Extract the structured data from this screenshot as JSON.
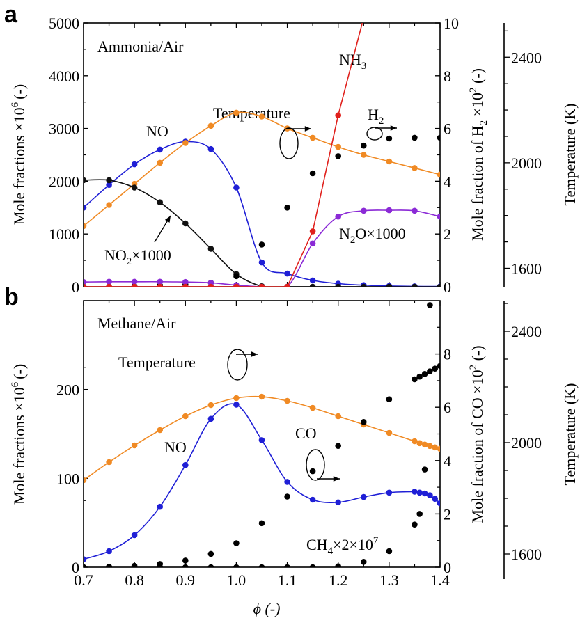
{
  "colors": {
    "no": "#1f1fd6",
    "temperature": "#f08a24",
    "species": "#18a818",
    "no2": "#111111",
    "n2o": "#8b2ad6",
    "nh3": "#e0201c"
  },
  "chart_data": [
    {
      "panel": "a",
      "type": "line",
      "annotations": {
        "label": "Ammonia/Air",
        "no": "NO",
        "temperature": "Temperature",
        "h2": "H",
        "h2_sub": "2",
        "nh3": "NH",
        "nh3_sub": "3",
        "no2": "NO",
        "no2_sub": "2",
        "no2_mult": "×1000",
        "n2o": "N",
        "n2o_sub": "2",
        "n2o_mult": "O×1000"
      },
      "left_axis": {
        "label": "Mole fractions ×10",
        "label_sup": "6",
        "label_unit": "(-)",
        "lim": [
          0,
          5000
        ],
        "ticks": [
          "0",
          "1000",
          "2000",
          "3000",
          "4000",
          "5000"
        ]
      },
      "right_axis": {
        "label": "Mole fraction of H",
        "label_sub": "2",
        "label_mid": " ×10",
        "label_sup": "2",
        "label_unit": " (-)",
        "lim": [
          0,
          10
        ],
        "ticks": [
          "0",
          "2",
          "4",
          "6",
          "8",
          "10"
        ]
      },
      "temp_axis": {
        "label": "Temperature (K)",
        "lim": [
          1530,
          2530
        ],
        "ticks": [
          "1600",
          "2000",
          "2400"
        ]
      },
      "xlim": [
        0.7,
        1.4
      ],
      "series": [
        {
          "key": "no",
          "axis": "left",
          "x": [
            0.7,
            0.75,
            0.8,
            0.85,
            0.9,
            0.95,
            1.0,
            1.05,
            1.1,
            1.15,
            1.2,
            1.25,
            1.3,
            1.35,
            1.4
          ],
          "y": [
            1500,
            1930,
            2320,
            2600,
            2750,
            2610,
            1880,
            460,
            250,
            120,
            60,
            30,
            15,
            8,
            5
          ]
        },
        {
          "key": "temperature",
          "axis": "temp",
          "x": [
            0.7,
            0.75,
            0.8,
            0.85,
            0.9,
            0.95,
            1.0,
            1.05,
            1.1,
            1.15,
            1.2,
            1.25,
            1.3,
            1.35,
            1.4
          ],
          "y": [
            1760,
            1840,
            1920,
            2000,
            2075,
            2140,
            2190,
            2175,
            2130,
            2095,
            2060,
            2030,
            2005,
            1980,
            1955
          ]
        },
        {
          "key": "no2",
          "axis": "left",
          "x": [
            0.7,
            0.75,
            0.8,
            0.85,
            0.9,
            0.95,
            1.0,
            1.05,
            1.1,
            1.15,
            1.2,
            1.25,
            1.3,
            1.35,
            1.4
          ],
          "y": [
            2020,
            2020,
            1880,
            1600,
            1200,
            720,
            240,
            10,
            0,
            0,
            0,
            0,
            0,
            0,
            0
          ]
        },
        {
          "key": "h2",
          "axis": "right",
          "x": [
            0.7,
            0.75,
            0.8,
            0.85,
            0.9,
            0.95,
            1.0,
            1.05,
            1.1,
            1.15,
            1.2,
            1.25,
            1.3,
            1.35,
            1.4
          ],
          "y": [
            0.0,
            0.0,
            0.02,
            0.05,
            0.08,
            0.15,
            0.4,
            1.6,
            3.0,
            4.3,
            4.95,
            5.35,
            5.62,
            5.65,
            5.65
          ]
        },
        {
          "key": "n2o",
          "axis": "left",
          "x": [
            0.7,
            0.75,
            0.8,
            0.85,
            0.9,
            0.95,
            1.0,
            1.05,
            1.1,
            1.15,
            1.2,
            1.25,
            1.3,
            1.35,
            1.4
          ],
          "y": [
            90,
            95,
            95,
            95,
            90,
            75,
            30,
            0,
            0,
            820,
            1330,
            1440,
            1450,
            1440,
            1330
          ]
        },
        {
          "key": "nh3",
          "axis": "right",
          "x": [
            0.7,
            0.75,
            0.8,
            0.85,
            0.9,
            0.95,
            1.0,
            1.05,
            1.1,
            1.15,
            1.2,
            1.25
          ],
          "y": [
            0,
            0,
            0,
            0,
            0,
            0,
            0,
            0,
            0,
            2.1,
            6.5,
            10.2
          ]
        }
      ]
    },
    {
      "panel": "b",
      "type": "line",
      "annotations": {
        "label": "Methane/Air",
        "no": "NO",
        "temperature": "Temperature",
        "co": "CO",
        "ch4": "CH",
        "ch4_sub": "4",
        "ch4_mult": "×2×10",
        "ch4_sup": "7"
      },
      "left_axis": {
        "label": "Mole fractions ×10",
        "label_sup": "6",
        "label_unit": "(-)",
        "lim": [
          0,
          300
        ],
        "ticks": [
          "0",
          "100",
          "200"
        ]
      },
      "right_axis": {
        "label": "Mole fraction of CO ×10",
        "label_sup": "2",
        "label_unit": " (-)",
        "lim": [
          0,
          10
        ],
        "ticks": [
          "0",
          "2",
          "4",
          "6",
          "8"
        ]
      },
      "temp_axis": {
        "label": "Temperature (K)",
        "lim": [
          1510,
          2510
        ],
        "ticks": [
          "1600",
          "2000",
          "2400"
        ]
      },
      "xlim": [
        0.7,
        1.4
      ],
      "xlabel": "ϕ (-)",
      "xticks": [
        "0.7",
        "0.8",
        "0.9",
        "1.0",
        "1.1",
        "1.2",
        "1.3",
        "1.4"
      ],
      "series": [
        {
          "key": "no",
          "axis": "left",
          "x": [
            0.7,
            0.75,
            0.8,
            0.85,
            0.9,
            0.95,
            1.0,
            1.05,
            1.1,
            1.15,
            1.2,
            1.25,
            1.3,
            1.35,
            1.36,
            1.37,
            1.38,
            1.39,
            1.4
          ],
          "y": [
            9,
            18,
            36,
            68,
            115,
            167,
            183,
            143,
            96,
            76,
            73,
            79,
            84,
            85,
            84,
            83,
            81,
            77,
            72
          ]
        },
        {
          "key": "temperature",
          "axis": "temp",
          "x": [
            0.7,
            0.75,
            0.8,
            0.85,
            0.9,
            0.95,
            1.0,
            1.05,
            1.1,
            1.15,
            1.2,
            1.25,
            1.3,
            1.35,
            1.36,
            1.37,
            1.38,
            1.39,
            1.4
          ],
          "y": [
            1865,
            1930,
            1990,
            2045,
            2095,
            2135,
            2160,
            2165,
            2150,
            2125,
            2095,
            2065,
            2035,
            2005,
            1998,
            1993,
            1988,
            1983,
            1978
          ]
        },
        {
          "key": "co",
          "axis": "right",
          "x": [
            0.7,
            0.75,
            0.8,
            0.85,
            0.9,
            0.95,
            1.0,
            1.05,
            1.1,
            1.15,
            1.2,
            1.25,
            1.3,
            1.35,
            1.36,
            1.37,
            1.38,
            1.39,
            1.4
          ],
          "y": [
            0.0,
            0.02,
            0.05,
            0.12,
            0.25,
            0.5,
            0.9,
            1.65,
            2.65,
            3.6,
            4.55,
            5.45,
            6.3,
            7.05,
            7.15,
            7.25,
            7.35,
            7.45,
            7.55
          ]
        },
        {
          "key": "ch4",
          "axis": "left",
          "x": [
            0.7,
            0.75,
            0.8,
            0.85,
            0.9,
            0.95,
            1.0,
            1.05,
            1.1,
            1.15,
            1.2,
            1.25,
            1.3,
            1.35,
            1.36,
            1.37,
            1.38
          ],
          "y": [
            0,
            0,
            0,
            0,
            0,
            0,
            0,
            0,
            0,
            0,
            1,
            6,
            18,
            48,
            60,
            110,
            295
          ]
        }
      ]
    }
  ]
}
